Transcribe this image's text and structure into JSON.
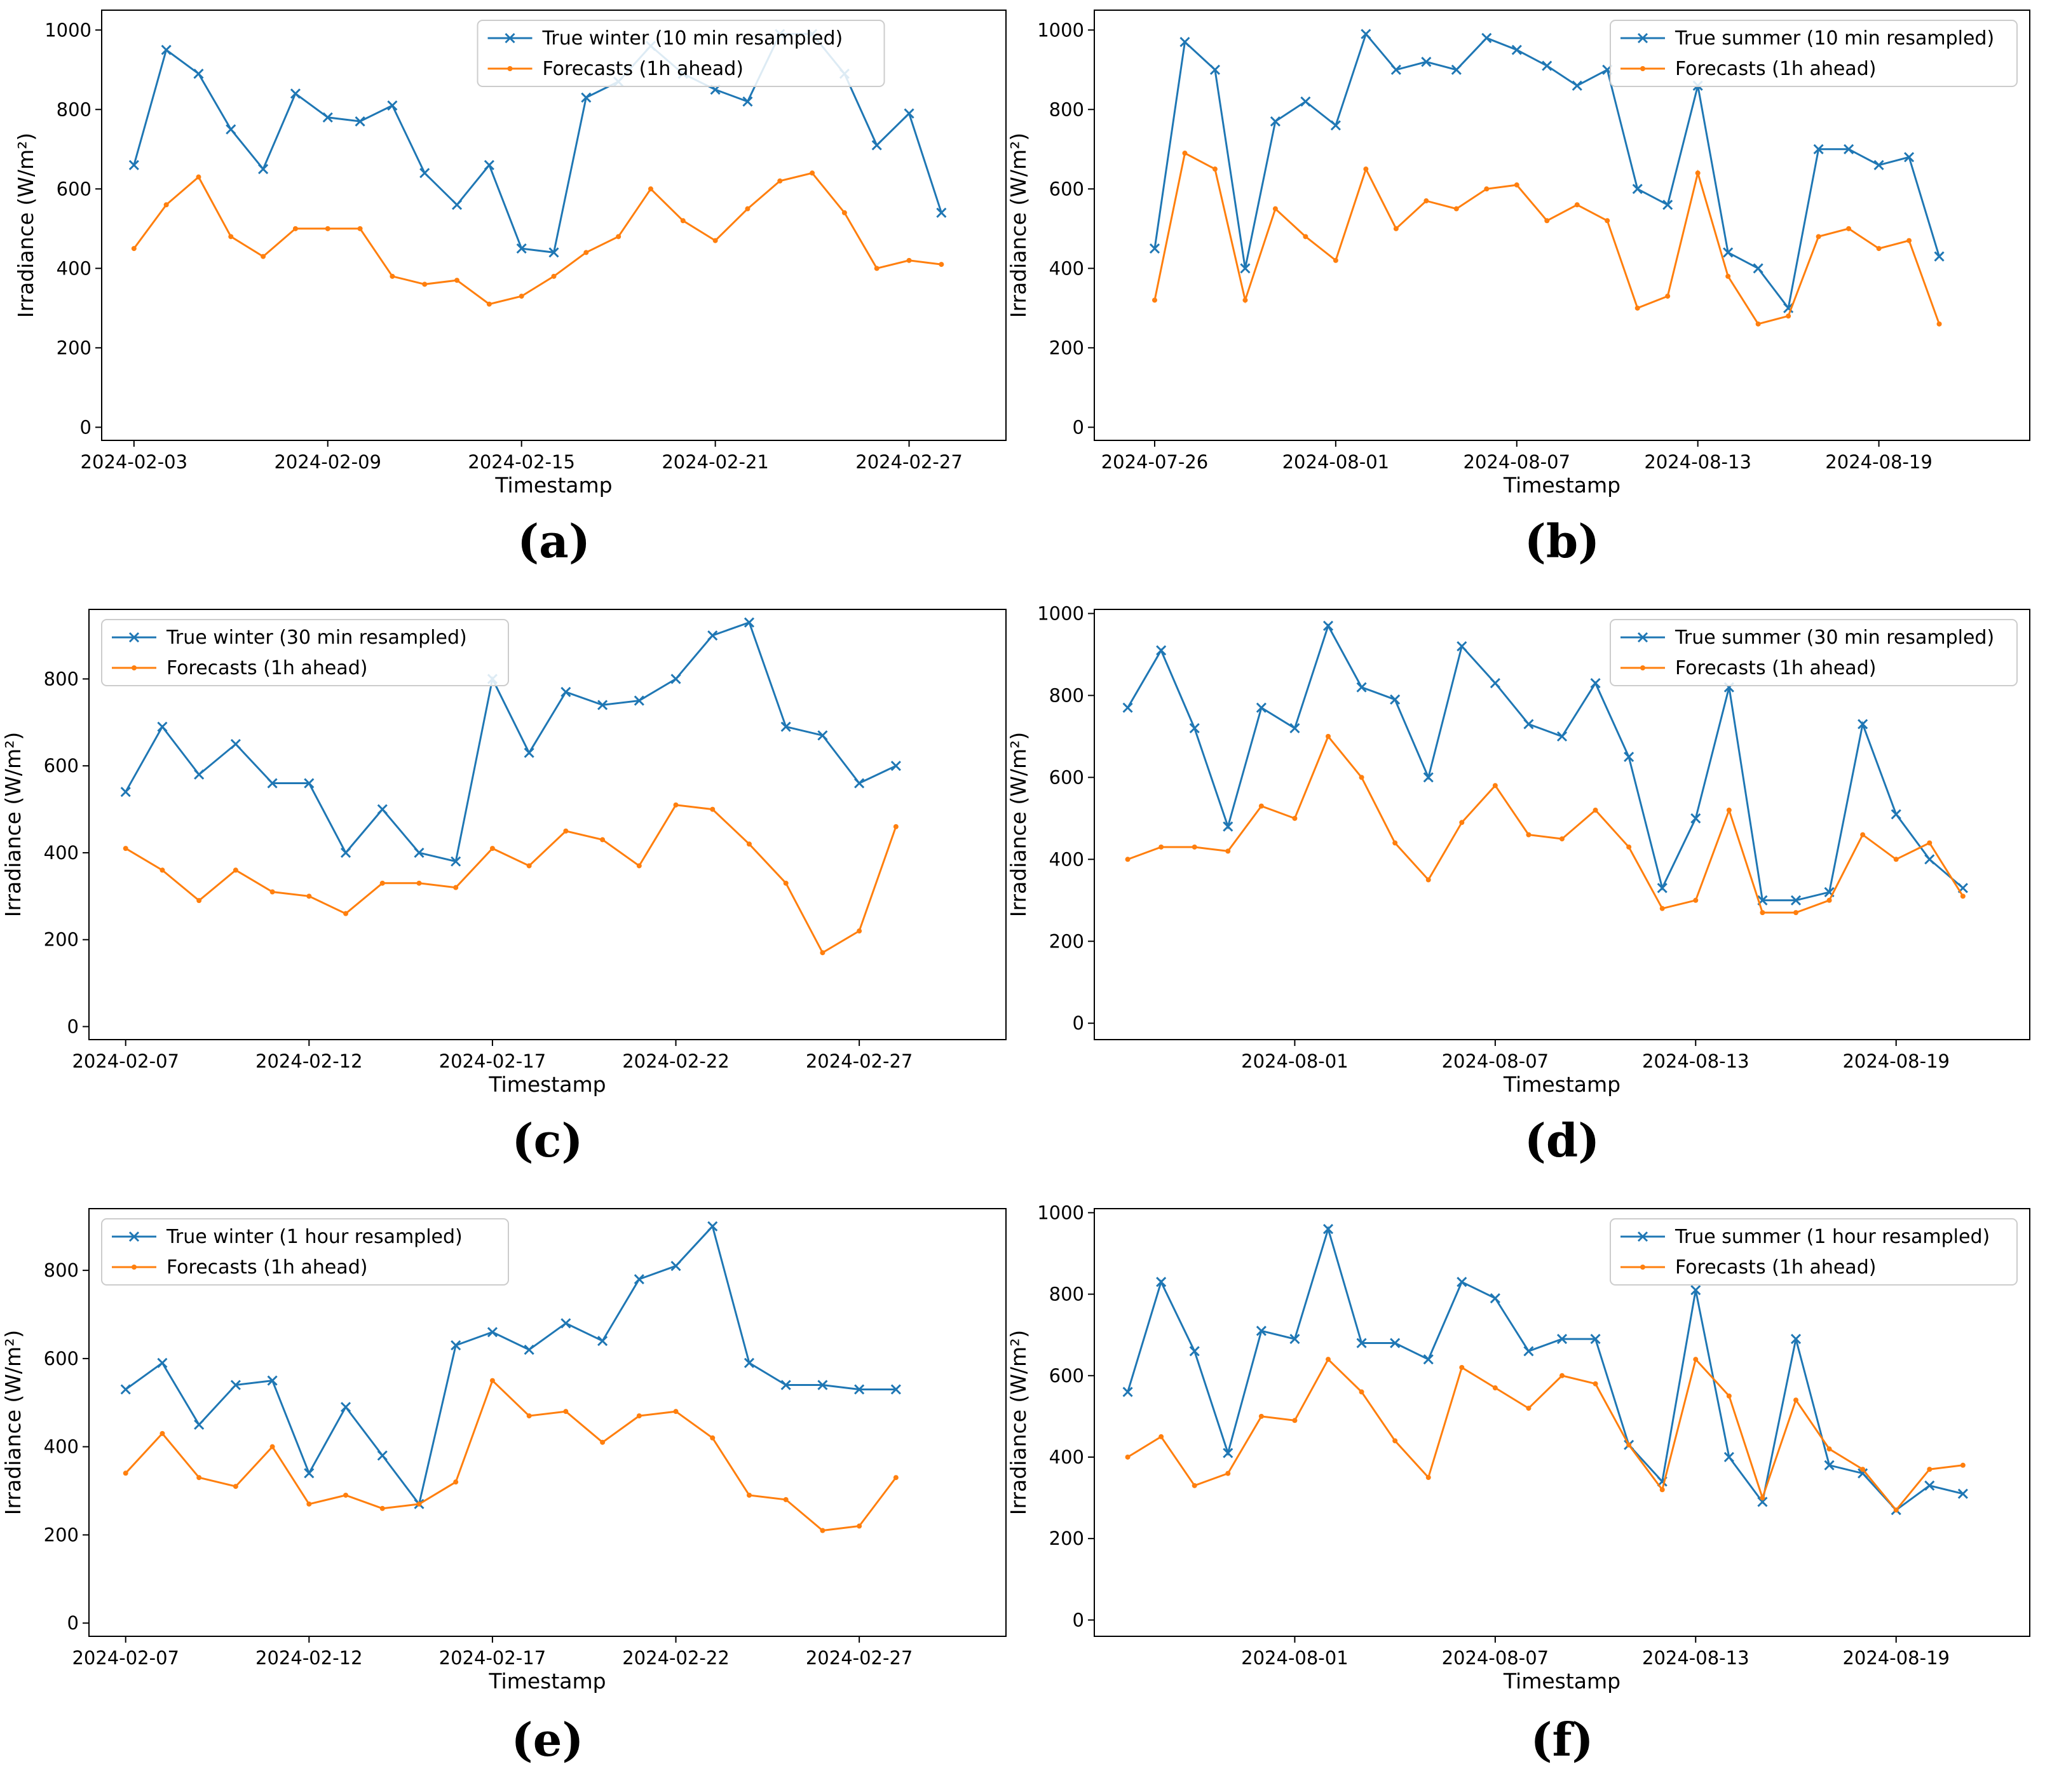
{
  "chart_data": [
    {
      "type": "line",
      "caption": "(a)",
      "xlabel": "Timestamp",
      "ylabel": "Irradiance (W/m²)",
      "legend": "upper center",
      "x": [
        "2024-02-03",
        "2024-02-04",
        "2024-02-05",
        "2024-02-06",
        "2024-02-07",
        "2024-02-08",
        "2024-02-09",
        "2024-02-10",
        "2024-02-11",
        "2024-02-12",
        "2024-02-13",
        "2024-02-14",
        "2024-02-15",
        "2024-02-16",
        "2024-02-17",
        "2024-02-18",
        "2024-02-19",
        "2024-02-20",
        "2024-02-21",
        "2024-02-22",
        "2024-02-23",
        "2024-02-24",
        "2024-02-25",
        "2024-02-26",
        "2024-02-27",
        "2024-02-28"
      ],
      "series": [
        {
          "name": "True winter (10 min resampled)",
          "color": "#1f77b4",
          "marker": "x",
          "values": [
            660,
            950,
            890,
            750,
            650,
            840,
            780,
            770,
            810,
            640,
            560,
            660,
            450,
            440,
            830,
            870,
            960,
            890,
            850,
            820,
            990,
            990,
            890,
            710,
            790,
            540
          ]
        },
        {
          "name": "Forecasts (1h ahead)",
          "color": "#ff7f0e",
          "marker": "dot",
          "values": [
            450,
            560,
            630,
            480,
            430,
            500,
            500,
            500,
            380,
            360,
            370,
            310,
            330,
            380,
            440,
            480,
            600,
            520,
            470,
            550,
            620,
            640,
            540,
            400,
            420,
            410
          ]
        }
      ],
      "xlim": [
        "2024-02-02",
        "2024-03-01"
      ],
      "xticks": [
        "2024-02-03",
        "2024-02-09",
        "2024-02-15",
        "2024-02-21",
        "2024-02-27"
      ],
      "ylim": [
        -33,
        1050
      ],
      "yticks": [
        0,
        200,
        400,
        600,
        800,
        1000
      ]
    },
    {
      "type": "line",
      "caption": "(b)",
      "xlabel": "Timestamp",
      "ylabel": "Irradiance (W/m²)",
      "legend": "upper right",
      "x": [
        "2024-07-26",
        "2024-07-27",
        "2024-07-28",
        "2024-07-29",
        "2024-07-30",
        "2024-07-31",
        "2024-08-01",
        "2024-08-02",
        "2024-08-03",
        "2024-08-04",
        "2024-08-05",
        "2024-08-06",
        "2024-08-07",
        "2024-08-08",
        "2024-08-09",
        "2024-08-10",
        "2024-08-11",
        "2024-08-12",
        "2024-08-13",
        "2024-08-14",
        "2024-08-15",
        "2024-08-16",
        "2024-08-17",
        "2024-08-18",
        "2024-08-19",
        "2024-08-20",
        "2024-08-21"
      ],
      "series": [
        {
          "name": "True summer (10 min resampled)",
          "color": "#1f77b4",
          "marker": "x",
          "values": [
            450,
            970,
            900,
            400,
            770,
            820,
            760,
            990,
            900,
            920,
            900,
            980,
            950,
            910,
            860,
            900,
            600,
            560,
            860,
            440,
            400,
            300,
            700,
            700,
            660,
            680,
            430
          ]
        },
        {
          "name": "Forecasts (1h ahead)",
          "color": "#ff7f0e",
          "marker": "dot",
          "values": [
            320,
            690,
            650,
            320,
            550,
            480,
            420,
            650,
            500,
            570,
            550,
            600,
            610,
            520,
            560,
            520,
            300,
            330,
            640,
            380,
            260,
            280,
            480,
            500,
            450,
            470,
            260
          ]
        }
      ],
      "xlim": [
        "2024-07-24",
        "2024-08-24"
      ],
      "xticks": [
        "2024-07-26",
        "2024-08-01",
        "2024-08-07",
        "2024-08-13",
        "2024-08-19"
      ],
      "ylim": [
        -33,
        1050
      ],
      "yticks": [
        0,
        200,
        400,
        600,
        800,
        1000
      ]
    },
    {
      "type": "line",
      "caption": "(c)",
      "xlabel": "Timestamp",
      "ylabel": "Irradiance (W/m²)",
      "legend": "upper left",
      "x": [
        "2024-02-07",
        "2024-02-08",
        "2024-02-09",
        "2024-02-10",
        "2024-02-11",
        "2024-02-12",
        "2024-02-13",
        "2024-02-14",
        "2024-02-15",
        "2024-02-16",
        "2024-02-17",
        "2024-02-18",
        "2024-02-19",
        "2024-02-20",
        "2024-02-21",
        "2024-02-22",
        "2024-02-23",
        "2024-02-24",
        "2024-02-25",
        "2024-02-26",
        "2024-02-27",
        "2024-02-28"
      ],
      "series": [
        {
          "name": "True winter (30 min resampled)",
          "color": "#1f77b4",
          "marker": "x",
          "values": [
            540,
            690,
            580,
            650,
            560,
            560,
            400,
            500,
            400,
            380,
            800,
            630,
            770,
            740,
            750,
            800,
            900,
            930,
            690,
            670,
            560,
            600
          ]
        },
        {
          "name": "Forecasts (1h ahead)",
          "color": "#ff7f0e",
          "marker": "dot",
          "values": [
            410,
            360,
            290,
            360,
            310,
            300,
            260,
            330,
            330,
            320,
            410,
            370,
            450,
            430,
            370,
            510,
            500,
            420,
            330,
            170,
            220,
            460
          ]
        }
      ],
      "xlim": [
        "2024-02-06",
        "2024-03-02"
      ],
      "xticks": [
        "2024-02-07",
        "2024-02-12",
        "2024-02-17",
        "2024-02-22",
        "2024-02-27"
      ],
      "ylim": [
        -30,
        960
      ],
      "yticks": [
        0,
        200,
        400,
        600,
        800
      ]
    },
    {
      "type": "line",
      "caption": "(d)",
      "xlabel": "Timestamp",
      "ylabel": "Irradiance (W/m²)",
      "legend": "upper right",
      "x": [
        "2024-07-27",
        "2024-07-28",
        "2024-07-29",
        "2024-07-30",
        "2024-07-31",
        "2024-08-01",
        "2024-08-02",
        "2024-08-03",
        "2024-08-04",
        "2024-08-05",
        "2024-08-06",
        "2024-08-07",
        "2024-08-08",
        "2024-08-09",
        "2024-08-10",
        "2024-08-11",
        "2024-08-12",
        "2024-08-13",
        "2024-08-14",
        "2024-08-15",
        "2024-08-16",
        "2024-08-17",
        "2024-08-18",
        "2024-08-19",
        "2024-08-20",
        "2024-08-21"
      ],
      "series": [
        {
          "name": "True summer (30 min resampled)",
          "color": "#1f77b4",
          "marker": "x",
          "values": [
            770,
            910,
            720,
            480,
            770,
            720,
            970,
            820,
            790,
            600,
            920,
            830,
            730,
            700,
            830,
            650,
            330,
            500,
            820,
            300,
            300,
            320,
            730,
            510,
            400,
            330
          ]
        },
        {
          "name": "Forecasts (1h ahead)",
          "color": "#ff7f0e",
          "marker": "dot",
          "values": [
            400,
            430,
            430,
            420,
            530,
            500,
            700,
            600,
            440,
            350,
            490,
            580,
            460,
            450,
            520,
            430,
            280,
            300,
            520,
            270,
            270,
            300,
            460,
            400,
            440,
            310
          ]
        }
      ],
      "xlim": [
        "2024-07-26",
        "2024-08-23"
      ],
      "xticks": [
        "2024-08-01",
        "2024-08-07",
        "2024-08-13",
        "2024-08-19"
      ],
      "ylim": [
        -40,
        1010
      ],
      "yticks": [
        0,
        200,
        400,
        600,
        800,
        1000
      ]
    },
    {
      "type": "line",
      "caption": "(e)",
      "xlabel": "Timestamp",
      "ylabel": "Irradiance (W/m²)",
      "legend": "upper left",
      "x": [
        "2024-02-07",
        "2024-02-08",
        "2024-02-09",
        "2024-02-10",
        "2024-02-11",
        "2024-02-12",
        "2024-02-13",
        "2024-02-14",
        "2024-02-15",
        "2024-02-16",
        "2024-02-17",
        "2024-02-18",
        "2024-02-19",
        "2024-02-20",
        "2024-02-21",
        "2024-02-22",
        "2024-02-23",
        "2024-02-24",
        "2024-02-25",
        "2024-02-26",
        "2024-02-27",
        "2024-02-28"
      ],
      "series": [
        {
          "name": "True winter (1 hour resampled)",
          "color": "#1f77b4",
          "marker": "x",
          "values": [
            530,
            590,
            450,
            540,
            550,
            340,
            490,
            380,
            270,
            630,
            660,
            620,
            680,
            640,
            780,
            810,
            900,
            590,
            540,
            540,
            530,
            530
          ]
        },
        {
          "name": "Forecasts (1h ahead)",
          "color": "#ff7f0e",
          "marker": "dot",
          "values": [
            340,
            430,
            330,
            310,
            400,
            270,
            290,
            260,
            270,
            320,
            550,
            470,
            480,
            410,
            470,
            480,
            420,
            290,
            280,
            210,
            220,
            330
          ]
        }
      ],
      "xlim": [
        "2024-02-06",
        "2024-03-02"
      ],
      "xticks": [
        "2024-02-07",
        "2024-02-12",
        "2024-02-17",
        "2024-02-22",
        "2024-02-27"
      ],
      "ylim": [
        -30,
        940
      ],
      "yticks": [
        0,
        200,
        400,
        600,
        800
      ]
    },
    {
      "type": "line",
      "caption": "(f)",
      "xlabel": "Timestamp",
      "ylabel": "Irradiance (W/m²)",
      "legend": "upper right",
      "x": [
        "2024-07-27",
        "2024-07-28",
        "2024-07-29",
        "2024-07-30",
        "2024-07-31",
        "2024-08-01",
        "2024-08-02",
        "2024-08-03",
        "2024-08-04",
        "2024-08-05",
        "2024-08-06",
        "2024-08-07",
        "2024-08-08",
        "2024-08-09",
        "2024-08-10",
        "2024-08-11",
        "2024-08-12",
        "2024-08-13",
        "2024-08-14",
        "2024-08-15",
        "2024-08-16",
        "2024-08-17",
        "2024-08-18",
        "2024-08-19",
        "2024-08-20",
        "2024-08-21"
      ],
      "series": [
        {
          "name": "True summer (1 hour resampled)",
          "color": "#1f77b4",
          "marker": "x",
          "values": [
            560,
            830,
            660,
            410,
            710,
            690,
            960,
            680,
            680,
            640,
            830,
            790,
            660,
            690,
            690,
            430,
            340,
            810,
            400,
            290,
            690,
            380,
            360,
            270,
            330,
            310
          ]
        },
        {
          "name": "Forecasts (1h ahead)",
          "color": "#ff7f0e",
          "marker": "dot",
          "values": [
            400,
            450,
            330,
            360,
            500,
            490,
            640,
            560,
            440,
            350,
            620,
            570,
            520,
            600,
            580,
            430,
            320,
            640,
            550,
            300,
            540,
            420,
            370,
            270,
            370,
            380
          ]
        }
      ],
      "xlim": [
        "2024-07-26",
        "2024-08-23"
      ],
      "xticks": [
        "2024-08-01",
        "2024-08-07",
        "2024-08-13",
        "2024-08-19"
      ],
      "ylim": [
        -40,
        1010
      ],
      "yticks": [
        0,
        200,
        400,
        600,
        800,
        1000
      ]
    }
  ]
}
